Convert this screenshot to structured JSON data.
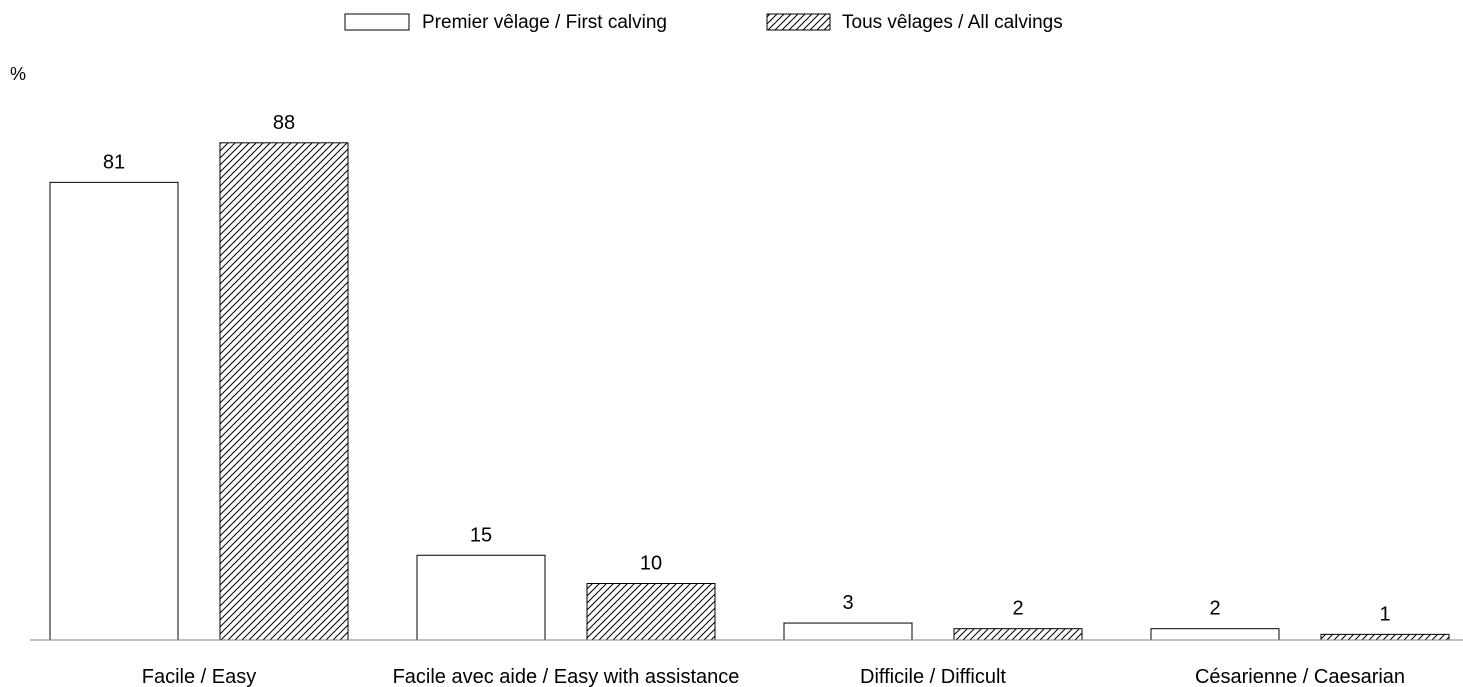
{
  "chart_data": {
    "type": "bar",
    "ylabel": "%",
    "categories": [
      "Facile / Easy",
      "Facile avec aide / Easy with assistance",
      "Difficile / Difficult",
      "Césarienne / Caesarian"
    ],
    "series": [
      {
        "name": "Premier vêlage / First calving",
        "values": [
          81,
          15,
          3,
          2
        ],
        "pattern": "none"
      },
      {
        "name": "Tous vêlages / All calvings",
        "values": [
          88,
          10,
          2,
          1
        ],
        "pattern": "diagonal-hatch"
      }
    ],
    "data_labels": true,
    "grid": false,
    "legend": "top-center",
    "colors": {
      "fill": "#ffffff",
      "stroke": "#000000",
      "hatch": "#000000"
    }
  }
}
